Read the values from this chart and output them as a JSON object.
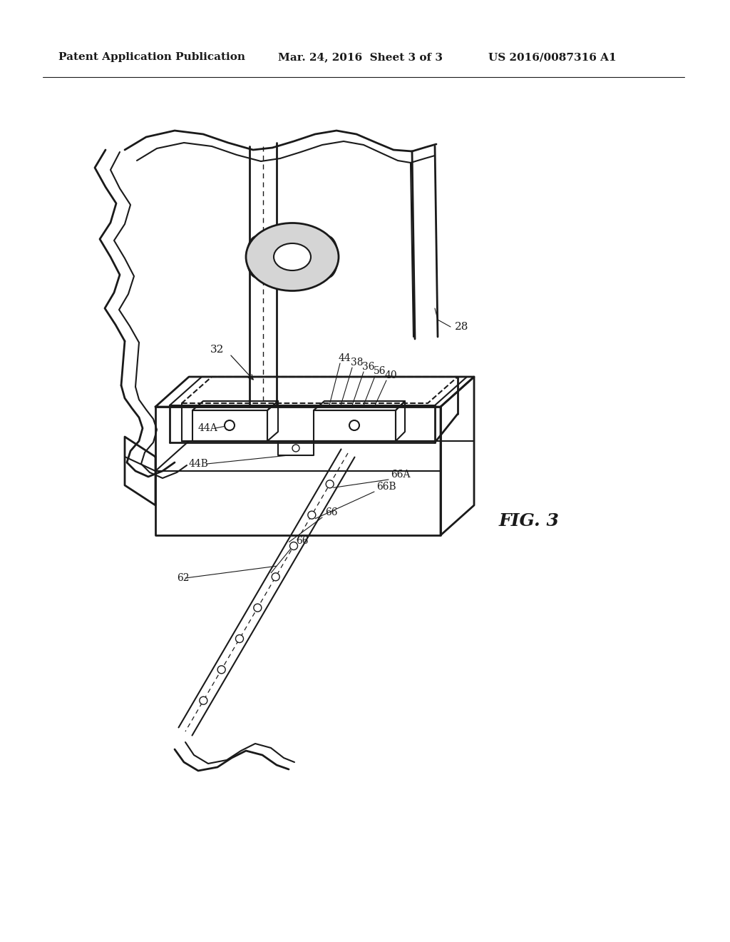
{
  "bg_color": "#ffffff",
  "line_color": "#1a1a1a",
  "header_left": "Patent Application Publication",
  "header_mid": "Mar. 24, 2016  Sheet 3 of 3",
  "header_right": "US 2016/0087316 A1",
  "fig_label": "FIG. 3"
}
